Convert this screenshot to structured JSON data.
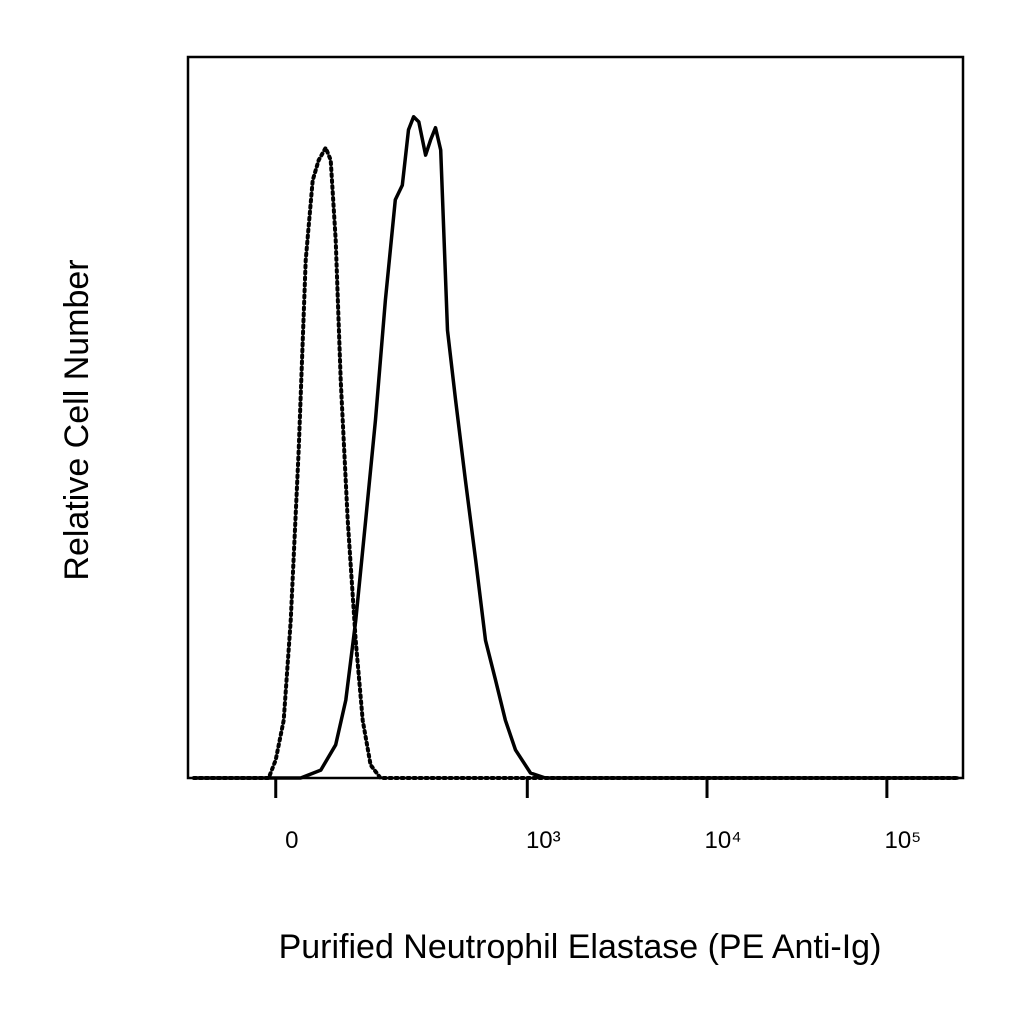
{
  "chart_data": {
    "type": "line",
    "xlabel": "Purified Neutrophil Elastase (PE Anti-Ig)",
    "ylabel": "Relative Cell Number",
    "xscale": "asinh",
    "xlim": [
      -110,
      265000
    ],
    "ylim": [
      0,
      100
    ],
    "xticks": [
      0,
      {
        "value": 1000,
        "label": "10³"
      },
      {
        "value": 10000,
        "label": "10⁴"
      },
      {
        "value": 100000,
        "label": "10⁵"
      }
    ],
    "series": [
      {
        "color": "#000000",
        "style": "dotted",
        "x": [
          -100,
          -7.2,
          0,
          8.2,
          15.4,
          23.9,
          31.4,
          39.3,
          46.2,
          54.7,
          61.1,
          67.6,
          74.4,
          84.6,
          97.0,
          108.7,
          122.9,
          142.4,
          250000
        ],
        "values": [
          0,
          0,
          2.5,
          8.0,
          21.8,
          45.5,
          71.8,
          82.9,
          85.7,
          87.4,
          85.7,
          74.6,
          55.2,
          35.8,
          19.1,
          8.0,
          1.8,
          0,
          0
        ]
      },
      {
        "color": "#000000",
        "style": "solid",
        "x": [
          -100,
          26.0,
          48.7,
          67.6,
          81.7,
          97.0,
          113.9,
          132.2,
          153.1,
          176.3,
          194.2,
          211.7,
          226.9,
          243.2,
          266.4,
          284.8,
          304.0,
          325.6,
          356.0,
          396,
          450,
          514,
          584,
          664,
          755,
          859,
          1042,
          1262,
          250000
        ],
        "values": [
          0,
          0,
          1.1,
          4.6,
          10.8,
          21.8,
          35.8,
          49.7,
          66.3,
          80.2,
          82.2,
          89.9,
          91.7,
          91.0,
          86.4,
          88.5,
          90.2,
          87.1,
          62.1,
          52.4,
          41.3,
          30.2,
          19.1,
          13.6,
          8.0,
          3.9,
          0.7,
          0,
          0
        ]
      }
    ]
  }
}
